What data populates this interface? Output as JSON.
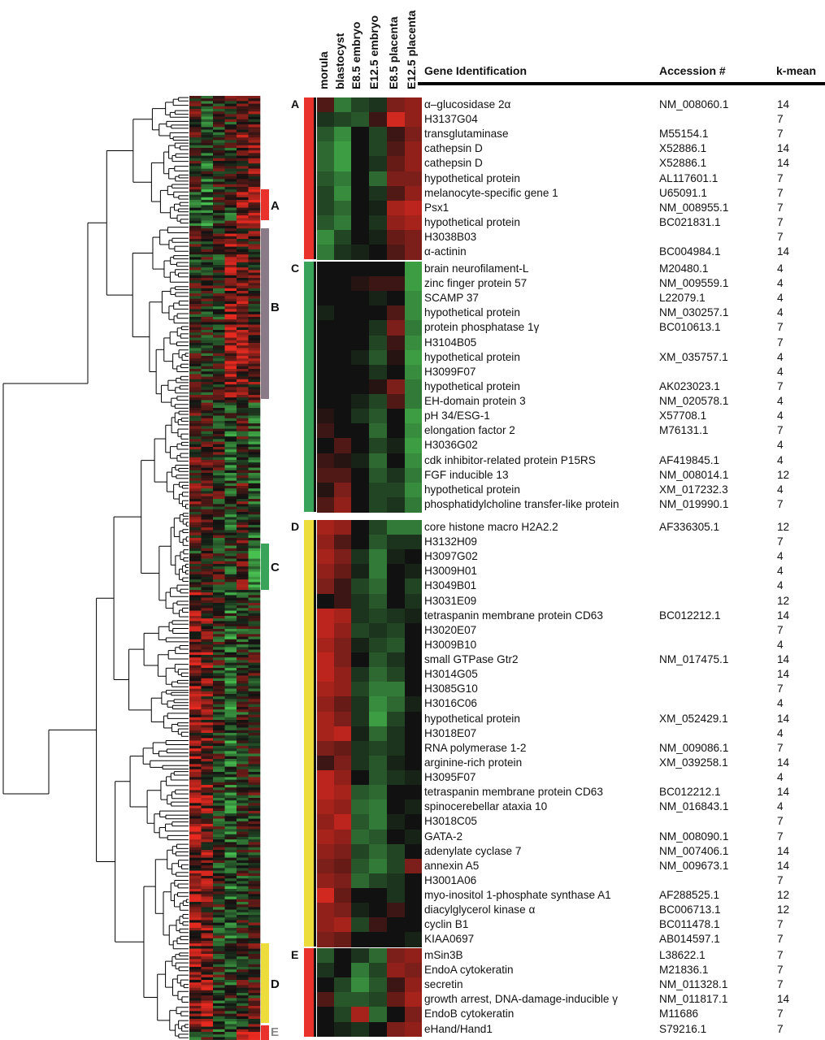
{
  "columns": [
    "morula",
    "blastocyst",
    "E8.5 embryo",
    "E12.5 embryo",
    "E8.5 placenta",
    "E12.5 placenta"
  ],
  "headers": {
    "gene": "Gene Identification",
    "accession": "Accession #",
    "kmean": "k-mean"
  },
  "colors": {
    "A": "#e8322b",
    "B": "#8a7a88",
    "C": "#39a35a",
    "D": "#ecdd3c",
    "E": "#e8322b",
    "heat_red": "#e62a20",
    "heat_green": "#48c050",
    "heat_black": "#111111"
  },
  "side_clusters": [
    {
      "label": "A",
      "color": "#e8322b"
    },
    {
      "label": "B",
      "color": "#8a7a88"
    },
    {
      "label": "C",
      "color": "#39a35a"
    },
    {
      "label": "D",
      "color": "#ecdd3c"
    },
    {
      "label": "E",
      "color": "#e8322b"
    }
  ],
  "clusters": [
    {
      "label": "A",
      "color": "#e8322b",
      "genes": [
        {
          "name": "α–glucosidase 2α",
          "accession": "NM_008060.1",
          "kmean": "14",
          "expr": [
            0.3,
            -0.6,
            -0.3,
            -0.2,
            0.5,
            0.6
          ]
        },
        {
          "name": "H3137G04",
          "accession": "",
          "kmean": "7",
          "expr": [
            -0.2,
            -0.3,
            -0.4,
            0.2,
            0.9,
            0.6
          ]
        },
        {
          "name": "transglutaminase",
          "accession": "M55154.1",
          "kmean": "7",
          "expr": [
            -0.4,
            -0.7,
            0.0,
            -0.3,
            0.2,
            0.5
          ]
        },
        {
          "name": "cathepsin D",
          "accession": "X52886.1",
          "kmean": "14",
          "expr": [
            -0.5,
            -0.8,
            0.0,
            -0.3,
            0.3,
            0.6
          ]
        },
        {
          "name": "cathepsin D",
          "accession": "X52886.1",
          "kmean": "14",
          "expr": [
            -0.5,
            -0.8,
            0.0,
            -0.2,
            0.4,
            0.6
          ]
        },
        {
          "name": "hypothetical protein",
          "accession": "AL117601.1",
          "kmean": "7",
          "expr": [
            -0.4,
            -0.6,
            0.0,
            -0.5,
            0.5,
            0.5
          ]
        },
        {
          "name": "melanocyte-specific gene 1",
          "accession": "U65091.1",
          "kmean": "7",
          "expr": [
            -0.3,
            -0.7,
            0.0,
            -0.2,
            0.3,
            0.6
          ]
        },
        {
          "name": "Psx1",
          "accession": "NM_008955.1",
          "kmean": "7",
          "expr": [
            -0.3,
            -0.5,
            0.0,
            -0.1,
            0.7,
            0.8
          ]
        },
        {
          "name": "hypothetical protein",
          "accession": "BC021831.1",
          "kmean": "7",
          "expr": [
            -0.4,
            -0.6,
            0.0,
            -0.2,
            0.6,
            0.7
          ]
        },
        {
          "name": "H3038B03",
          "accession": "",
          "kmean": "7",
          "expr": [
            -0.7,
            -0.3,
            0.0,
            -0.1,
            0.4,
            0.5
          ]
        },
        {
          "name": "α-actinin",
          "accession": "BC004984.1",
          "kmean": "14",
          "expr": [
            -0.6,
            -0.2,
            -0.1,
            0.0,
            0.3,
            0.5
          ]
        }
      ]
    },
    {
      "label": "C",
      "color": "#39a35a",
      "genes": [
        {
          "name": "brain neurofilament-L",
          "accession": "M20480.1",
          "kmean": "4",
          "expr": [
            0.0,
            0.0,
            0.0,
            0.0,
            0.0,
            -0.8
          ]
        },
        {
          "name": "zinc finger protein 57",
          "accession": "NM_009559.1",
          "kmean": "4",
          "expr": [
            0.0,
            0.0,
            0.1,
            0.2,
            0.2,
            -0.8
          ]
        },
        {
          "name": "SCAMP 37",
          "accession": "L22079.1",
          "kmean": "4",
          "expr": [
            0.0,
            0.0,
            0.0,
            -0.1,
            0.0,
            -0.7
          ]
        },
        {
          "name": "hypothetical protein",
          "accession": "NM_030257.1",
          "kmean": "4",
          "expr": [
            -0.1,
            0.0,
            0.0,
            0.0,
            0.3,
            -0.7
          ]
        },
        {
          "name": "protein phosphatase 1γ",
          "accession": "BC010613.1",
          "kmean": "7",
          "expr": [
            0.0,
            0.0,
            0.0,
            -0.2,
            0.5,
            -0.6
          ]
        },
        {
          "name": "H3104B05",
          "accession": "",
          "kmean": "7",
          "expr": [
            0.0,
            0.0,
            0.0,
            -0.3,
            0.2,
            -0.7
          ]
        },
        {
          "name": "hypothetical protein",
          "accession": "XM_035757.1",
          "kmean": "4",
          "expr": [
            0.0,
            0.0,
            -0.1,
            -0.4,
            0.1,
            -0.8
          ]
        },
        {
          "name": "H3099F07",
          "accession": "",
          "kmean": "4",
          "expr": [
            0.0,
            0.0,
            0.0,
            -0.2,
            0.0,
            -0.7
          ]
        },
        {
          "name": "hypothetical protein",
          "accession": "AK023023.1",
          "kmean": "7",
          "expr": [
            0.0,
            0.0,
            0.0,
            0.1,
            0.5,
            -0.6
          ]
        },
        {
          "name": "EH-domain protein 3",
          "accession": "NM_020578.1",
          "kmean": "4",
          "expr": [
            0.0,
            0.0,
            -0.1,
            -0.3,
            0.3,
            -0.6
          ]
        },
        {
          "name": "pH 34/ESG-1",
          "accession": "X57708.1",
          "kmean": "4",
          "expr": [
            0.1,
            0.0,
            -0.2,
            -0.4,
            0.0,
            -0.8
          ]
        },
        {
          "name": "elongation factor 2",
          "accession": "M76131.1",
          "kmean": "7",
          "expr": [
            0.2,
            0.0,
            0.0,
            -0.5,
            0.0,
            -0.7
          ]
        },
        {
          "name": "H3036G02",
          "accession": "",
          "kmean": "4",
          "expr": [
            0.0,
            0.3,
            0.0,
            -0.3,
            -0.1,
            -0.8
          ]
        },
        {
          "name": "cdk inhibitor-related protein P15RS",
          "accession": "AF419845.1",
          "kmean": "4",
          "expr": [
            0.2,
            0.1,
            -0.1,
            -0.5,
            0.0,
            -0.7
          ]
        },
        {
          "name": "FGF inducible 13",
          "accession": "NM_008014.1",
          "kmean": "12",
          "expr": [
            0.3,
            0.3,
            0.0,
            -0.4,
            -0.2,
            -0.6
          ]
        },
        {
          "name": "hypothetical protein",
          "accession": "XM_017232.3",
          "kmean": "4",
          "expr": [
            0.1,
            0.5,
            0.0,
            -0.3,
            -0.3,
            -0.7
          ]
        },
        {
          "name": "phosphatidylcholine transfer-like protein",
          "accession": "NM_019990.1",
          "kmean": "7",
          "expr": [
            0.3,
            0.6,
            0.0,
            -0.3,
            -0.2,
            -0.6
          ]
        }
      ]
    },
    {
      "label": "D",
      "color": "#ecdd3c",
      "genes": [
        {
          "name": "core histone macro H2A2.2",
          "accession": "AF336305.1",
          "kmean": "12",
          "expr": [
            0.7,
            0.6,
            0.0,
            -0.3,
            -0.6,
            -0.6
          ]
        },
        {
          "name": "H3132H09",
          "accession": "",
          "kmean": "7",
          "expr": [
            0.6,
            0.3,
            0.0,
            -0.4,
            -0.2,
            -0.2
          ]
        },
        {
          "name": "H3097G02",
          "accession": "",
          "kmean": "4",
          "expr": [
            0.7,
            0.5,
            -0.2,
            -0.6,
            -0.1,
            0.0
          ]
        },
        {
          "name": "H3009H01",
          "accession": "",
          "kmean": "4",
          "expr": [
            0.6,
            0.4,
            -0.1,
            -0.6,
            0.0,
            -0.1
          ]
        },
        {
          "name": "H3049B01",
          "accession": "",
          "kmean": "4",
          "expr": [
            0.5,
            0.2,
            -0.3,
            -0.5,
            0.0,
            -0.3
          ]
        },
        {
          "name": "H3031E09",
          "accession": "",
          "kmean": "12",
          "expr": [
            0.0,
            0.2,
            -0.2,
            -0.4,
            0.0,
            -0.2
          ]
        },
        {
          "name": "tetraspanin membrane protein CD63",
          "accession": "BC012212.1",
          "kmean": "14",
          "expr": [
            0.8,
            0.7,
            -0.2,
            -0.3,
            -0.2,
            -0.1
          ]
        },
        {
          "name": "H3020E07",
          "accession": "",
          "kmean": "7",
          "expr": [
            0.8,
            0.6,
            -0.3,
            -0.2,
            -0.3,
            0.0
          ]
        },
        {
          "name": "H3009B10",
          "accession": "",
          "kmean": "4",
          "expr": [
            0.7,
            0.5,
            -0.1,
            -0.3,
            -0.4,
            0.0
          ]
        },
        {
          "name": "small GTPase Gtr2",
          "accession": "NM_017475.1",
          "kmean": "14",
          "expr": [
            0.8,
            0.5,
            0.0,
            -0.4,
            -0.2,
            0.0
          ]
        },
        {
          "name": "H3014G05",
          "accession": "",
          "kmean": "14",
          "expr": [
            0.8,
            0.6,
            -0.2,
            -0.5,
            -0.3,
            0.0
          ]
        },
        {
          "name": "H3085G10",
          "accession": "",
          "kmean": "7",
          "expr": [
            0.7,
            0.6,
            -0.3,
            -0.6,
            -0.6,
            0.0
          ]
        },
        {
          "name": "H3016C06",
          "accession": "",
          "kmean": "4",
          "expr": [
            0.6,
            0.4,
            -0.2,
            -0.7,
            -0.5,
            -0.1
          ]
        },
        {
          "name": "hypothetical protein",
          "accession": "XM_052429.1",
          "kmean": "14",
          "expr": [
            0.7,
            0.5,
            -0.2,
            -0.8,
            -0.3,
            0.0
          ]
        },
        {
          "name": "H3018E07",
          "accession": "",
          "kmean": "4",
          "expr": [
            0.7,
            0.8,
            -0.1,
            -0.5,
            -0.2,
            0.0
          ]
        },
        {
          "name": "RNA polymerase 1-2",
          "accession": "NM_009086.1",
          "kmean": "7",
          "expr": [
            0.5,
            0.4,
            -0.2,
            -0.3,
            -0.2,
            0.0
          ]
        },
        {
          "name": "arginine-rich protein",
          "accession": "XM_039258.1",
          "kmean": "14",
          "expr": [
            0.2,
            0.5,
            -0.2,
            -0.4,
            -0.1,
            0.0
          ]
        },
        {
          "name": "H3095F07",
          "accession": "",
          "kmean": "4",
          "expr": [
            0.8,
            0.6,
            0.0,
            -0.4,
            -0.2,
            -0.1
          ]
        },
        {
          "name": "tetraspanin membrane protein CD63",
          "accession": "BC012212.1",
          "kmean": "14",
          "expr": [
            0.8,
            0.7,
            -0.4,
            -0.5,
            0.0,
            0.0
          ]
        },
        {
          "name": "spinocerebellar ataxia 10",
          "accession": "NM_016843.1",
          "kmean": "4",
          "expr": [
            0.7,
            0.6,
            -0.5,
            -0.6,
            0.0,
            -0.1
          ]
        },
        {
          "name": "H3018C05",
          "accession": "",
          "kmean": "7",
          "expr": [
            0.6,
            0.8,
            -0.4,
            -0.6,
            -0.1,
            0.0
          ]
        },
        {
          "name": "GATA-2",
          "accession": "NM_008090.1",
          "kmean": "7",
          "expr": [
            0.7,
            0.6,
            -0.5,
            -0.4,
            0.0,
            -0.1
          ]
        },
        {
          "name": "adenylate cyclase 7",
          "accession": "NM_007406.1",
          "kmean": "14",
          "expr": [
            0.6,
            0.5,
            -0.3,
            -0.5,
            -0.3,
            0.0
          ]
        },
        {
          "name": "annexin A5",
          "accession": "NM_009673.1",
          "kmean": "14",
          "expr": [
            0.5,
            0.4,
            -0.4,
            -0.6,
            -0.3,
            0.5
          ]
        },
        {
          "name": "H3001A06",
          "accession": "",
          "kmean": "7",
          "expr": [
            0.6,
            0.5,
            -0.5,
            -0.3,
            -0.2,
            0.0
          ]
        },
        {
          "name": "myo-inositol 1-phosphate synthase A1",
          "accession": "AF288525.1",
          "kmean": "12",
          "expr": [
            0.9,
            0.4,
            0.0,
            0.0,
            -0.2,
            0.0
          ]
        },
        {
          "name": "diacylglycerol kinase α",
          "accession": "BC006713.1",
          "kmean": "12",
          "expr": [
            0.6,
            0.5,
            -0.1,
            0.0,
            0.2,
            0.0
          ]
        },
        {
          "name": "cyclin B1",
          "accession": "BC011478.1",
          "kmean": "7",
          "expr": [
            0.6,
            0.7,
            -0.3,
            0.2,
            0.0,
            0.0
          ]
        },
        {
          "name": "KIAA0697",
          "accession": "AB014597.1",
          "kmean": "7",
          "expr": [
            0.5,
            0.4,
            0.0,
            0.0,
            0.0,
            -0.1
          ]
        }
      ]
    },
    {
      "label": "E",
      "color": "#e8322b",
      "genes": [
        {
          "name": "mSin3B",
          "accession": "L38622.1",
          "kmean": "7",
          "expr": [
            -0.4,
            0.0,
            -0.2,
            -0.5,
            0.5,
            0.6
          ]
        },
        {
          "name": "EndoA cytokeratin",
          "accession": "M21836.1",
          "kmean": "7",
          "expr": [
            -0.2,
            0.0,
            -0.6,
            -0.3,
            0.6,
            0.5
          ]
        },
        {
          "name": "secretin",
          "accession": "NM_011328.1",
          "kmean": "7",
          "expr": [
            0.0,
            -0.3,
            -0.7,
            -0.4,
            0.2,
            0.6
          ]
        },
        {
          "name": "growth arrest, DNA-damage-inducible γ",
          "accession": "NM_011817.1",
          "kmean": "14",
          "expr": [
            0.3,
            -0.4,
            -0.4,
            -0.3,
            0.4,
            0.7
          ]
        },
        {
          "name": "EndoB cytokeratin",
          "accession": "M11686",
          "kmean": "7",
          "expr": [
            0.0,
            -0.3,
            0.7,
            -0.5,
            0.0,
            0.5
          ]
        },
        {
          "name": "eHand/Hand1",
          "accession": "S79216.1",
          "kmean": "7",
          "expr": [
            0.0,
            -0.1,
            -0.2,
            0.0,
            0.5,
            0.6
          ]
        }
      ]
    }
  ]
}
